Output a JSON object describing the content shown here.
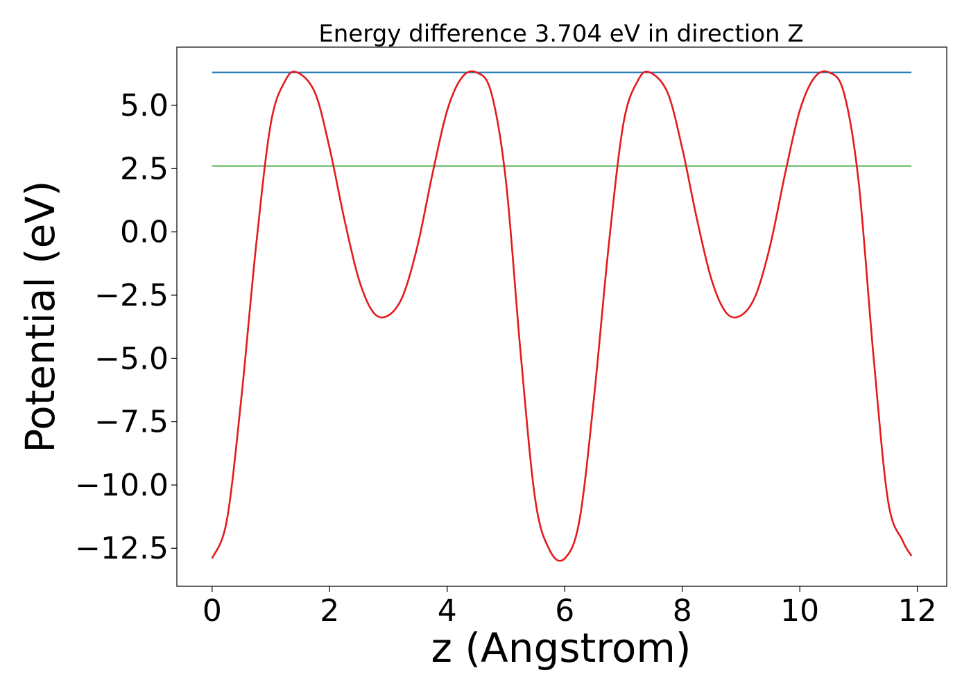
{
  "chart_data": {
    "type": "line",
    "title": "Energy difference 3.704 eV in direction Z",
    "xlabel": "z (Angstrom)",
    "ylabel": "Potential (eV)",
    "xlim": [
      -0.6,
      12.5
    ],
    "ylim": [
      -14.0,
      7.3
    ],
    "xticks": [
      0,
      2,
      4,
      6,
      8,
      10,
      12
    ],
    "xtick_labels": [
      "0",
      "2",
      "4",
      "6",
      "8",
      "10",
      "12"
    ],
    "yticks": [
      5.0,
      2.5,
      0.0,
      -2.5,
      -5.0,
      -7.5,
      -10.0,
      -12.5
    ],
    "ytick_labels": [
      "5.0",
      "2.5",
      "0.0",
      "−2.5",
      "−5.0",
      "−7.5",
      "−10.0",
      "−12.5"
    ],
    "grid": false,
    "legend": "none",
    "series": [
      {
        "color": "#e41a1c",
        "x": [
          0.0,
          0.25,
          0.5,
          0.75,
          1.0,
          1.25,
          1.45,
          1.75,
          2.0,
          2.25,
          2.5,
          2.75,
          3.0,
          3.25,
          3.5,
          3.75,
          4.0,
          4.25,
          4.5,
          4.75,
          5.0,
          5.25,
          5.5,
          5.75,
          6.0,
          6.25,
          6.5,
          6.75,
          7.0,
          7.25,
          7.45,
          7.75,
          8.0,
          8.25,
          8.5,
          8.75,
          9.0,
          9.25,
          9.5,
          9.75,
          10.0,
          10.25,
          10.5,
          10.75,
          11.0,
          11.25,
          11.5,
          11.75,
          11.9
        ],
        "y": [
          -12.9,
          -11.4,
          -6.5,
          -0.5,
          4.3,
          6.0,
          6.3,
          5.5,
          3.3,
          0.5,
          -1.9,
          -3.2,
          -3.3,
          -2.5,
          -0.5,
          2.3,
          4.8,
          6.1,
          6.3,
          5.5,
          2.0,
          -4.8,
          -10.6,
          -12.6,
          -12.9,
          -11.4,
          -6.5,
          -0.5,
          4.3,
          6.0,
          6.3,
          5.5,
          3.3,
          0.5,
          -1.9,
          -3.2,
          -3.3,
          -2.5,
          -0.5,
          2.3,
          4.8,
          6.1,
          6.3,
          5.5,
          2.0,
          -4.8,
          -10.6,
          -12.2,
          -12.8
        ]
      },
      {
        "color": "#1f77b4",
        "x": [
          0.0,
          11.9
        ],
        "y": [
          6.3,
          6.3
        ]
      },
      {
        "color": "#4daf4a",
        "x": [
          0.0,
          11.9
        ],
        "y": [
          2.6,
          2.6
        ]
      }
    ]
  }
}
